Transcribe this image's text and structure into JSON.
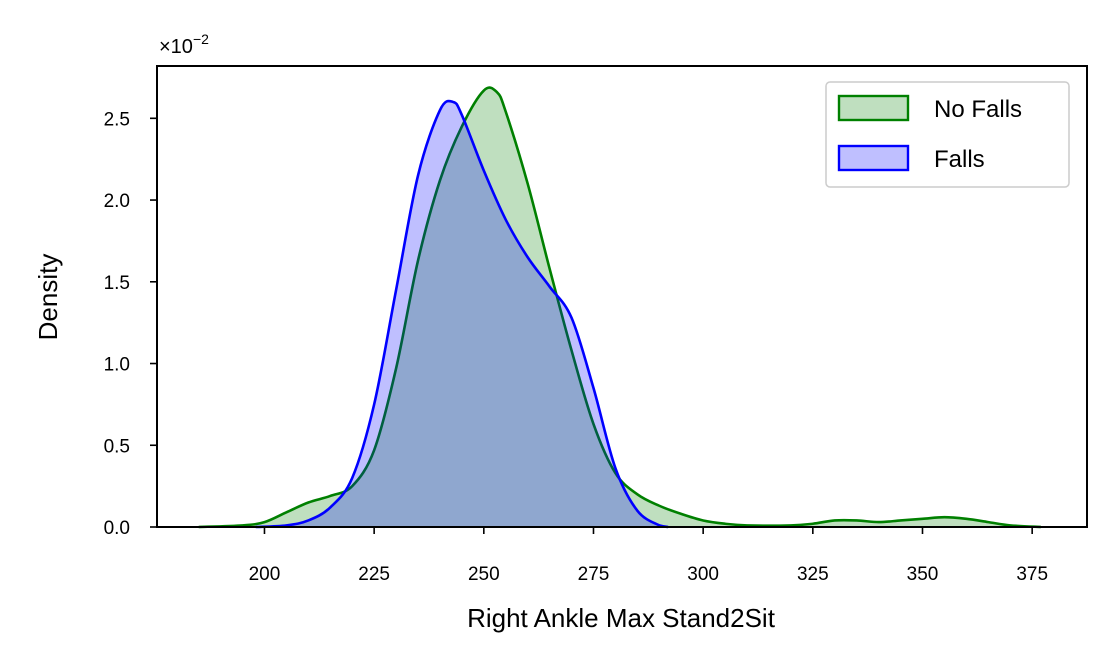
{
  "chart_data": {
    "type": "area",
    "title": "",
    "xlabel": "Right Ankle Max Stand2Sit",
    "ylabel": "Density",
    "y_scale_label": "×10",
    "y_scale_exponent": "−2",
    "xlim": [
      175.5,
      387.5
    ],
    "ylim": [
      0,
      2.82
    ],
    "x_ticks": [
      200,
      225,
      250,
      275,
      300,
      325,
      350,
      375
    ],
    "x_tick_labels": [
      "200",
      "225",
      "250",
      "275",
      "300",
      "325",
      "350",
      "375"
    ],
    "y_ticks": [
      0.0,
      0.5,
      1.0,
      1.5,
      2.0,
      2.5
    ],
    "y_tick_labels": [
      "0.0",
      "0.5",
      "1.0",
      "1.5",
      "2.0",
      "2.5"
    ],
    "grid": false,
    "legend_position": "top-right",
    "series": [
      {
        "name": "No Falls",
        "color": "#008000",
        "fill": "#008000",
        "points": [
          [
            185,
            0.0
          ],
          [
            195,
            0.01
          ],
          [
            200,
            0.03
          ],
          [
            205,
            0.09
          ],
          [
            210,
            0.15
          ],
          [
            215,
            0.19
          ],
          [
            220,
            0.25
          ],
          [
            225,
            0.47
          ],
          [
            230,
            0.97
          ],
          [
            235,
            1.63
          ],
          [
            240,
            2.12
          ],
          [
            245,
            2.45
          ],
          [
            250,
            2.67
          ],
          [
            253,
            2.66
          ],
          [
            255,
            2.54
          ],
          [
            260,
            2.1
          ],
          [
            265,
            1.58
          ],
          [
            270,
            1.08
          ],
          [
            275,
            0.63
          ],
          [
            280,
            0.33
          ],
          [
            285,
            0.2
          ],
          [
            290,
            0.13
          ],
          [
            295,
            0.08
          ],
          [
            300,
            0.04
          ],
          [
            305,
            0.02
          ],
          [
            310,
            0.01
          ],
          [
            320,
            0.01
          ],
          [
            325,
            0.02
          ],
          [
            330,
            0.04
          ],
          [
            335,
            0.04
          ],
          [
            340,
            0.03
          ],
          [
            345,
            0.04
          ],
          [
            350,
            0.05
          ],
          [
            355,
            0.06
          ],
          [
            360,
            0.05
          ],
          [
            365,
            0.03
          ],
          [
            370,
            0.01
          ],
          [
            377,
            0.0
          ]
        ]
      },
      {
        "name": "Falls",
        "color": "#0000ff",
        "fill": "#0000ff",
        "points": [
          [
            198,
            0.0
          ],
          [
            205,
            0.01
          ],
          [
            210,
            0.04
          ],
          [
            215,
            0.12
          ],
          [
            220,
            0.3
          ],
          [
            225,
            0.75
          ],
          [
            230,
            1.45
          ],
          [
            235,
            2.15
          ],
          [
            240,
            2.55
          ],
          [
            243,
            2.6
          ],
          [
            245,
            2.52
          ],
          [
            250,
            2.18
          ],
          [
            255,
            1.88
          ],
          [
            260,
            1.65
          ],
          [
            265,
            1.47
          ],
          [
            270,
            1.28
          ],
          [
            275,
            0.85
          ],
          [
            280,
            0.36
          ],
          [
            285,
            0.1
          ],
          [
            290,
            0.01
          ],
          [
            292,
            0.0
          ]
        ]
      }
    ]
  }
}
